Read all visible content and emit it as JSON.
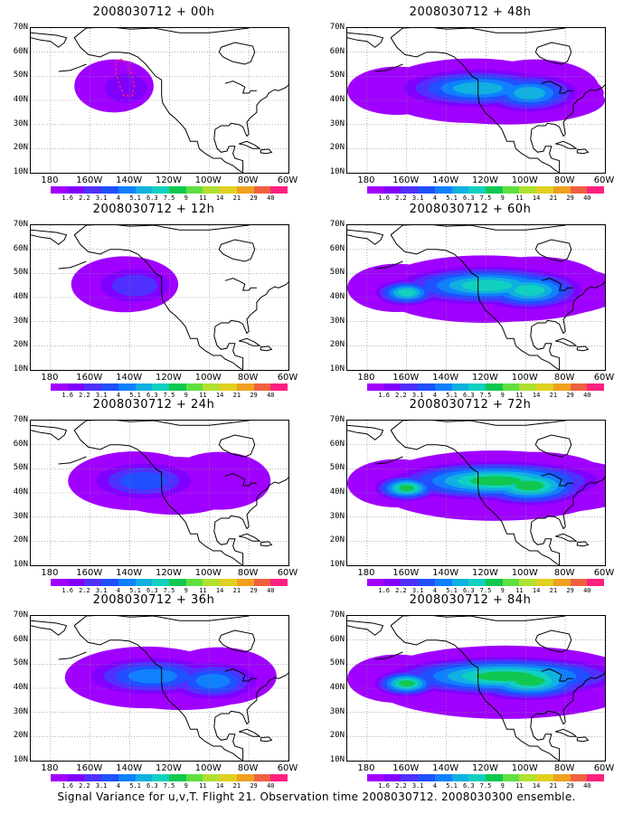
{
  "panels": [
    {
      "title": "2008030712 + 00h",
      "col": 0,
      "row": 0,
      "level": 0
    },
    {
      "title": "2008030712 + 48h",
      "col": 1,
      "row": 0,
      "level": 4
    },
    {
      "title": "2008030712 + 12h",
      "col": 0,
      "row": 1,
      "level": 1
    },
    {
      "title": "2008030712 + 60h",
      "col": 1,
      "row": 1,
      "level": 5
    },
    {
      "title": "2008030712 + 24h",
      "col": 0,
      "row": 2,
      "level": 2
    },
    {
      "title": "2008030712 + 72h",
      "col": 1,
      "row": 2,
      "level": 6
    },
    {
      "title": "2008030712 + 36h",
      "col": 0,
      "row": 3,
      "level": 3
    },
    {
      "title": "2008030712 + 84h",
      "col": 1,
      "row": 3,
      "level": 7
    }
  ],
  "lat_labels": [
    "70N",
    "60N",
    "50N",
    "40N",
    "30N",
    "20N",
    "10N"
  ],
  "lon_labels": [
    "180",
    "160W",
    "140W",
    "120W",
    "100W",
    "80W",
    "60W"
  ],
  "colorbar": {
    "labels": [
      "1.6",
      "2.2",
      "3.1",
      "4",
      "5.1",
      "6.3",
      "7.5",
      "9",
      "11",
      "14",
      "21",
      "29",
      "40"
    ],
    "colors": [
      "#a000ff",
      "#8000ff",
      "#5030ff",
      "#2050ff",
      "#1080ff",
      "#10b0e0",
      "#10d0c0",
      "#10c850",
      "#60e040",
      "#b0e030",
      "#e0d020",
      "#f0a020",
      "#f06040",
      "#ff2080"
    ]
  },
  "caption": "Signal Variance for u,v,T. Flight 21. Observation time 2008030712. 2008030300 ensemble."
}
